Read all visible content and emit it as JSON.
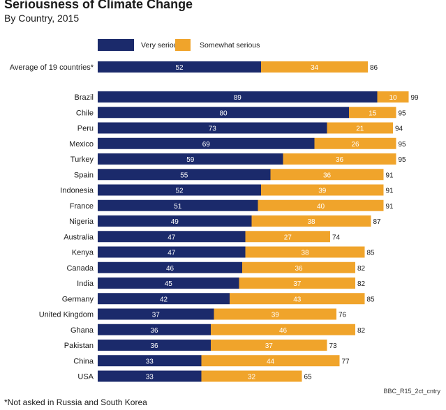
{
  "chart_data": {
    "type": "bar",
    "orientation": "horizontal",
    "stacked": true,
    "title": "Seriousness of Climate Change",
    "subtitle": "By Country, 2015",
    "categories": [
      "Average of 19 countries*",
      "Brazil",
      "Chile",
      "Peru",
      "Mexico",
      "Turkey",
      "Spain",
      "Indonesia",
      "France",
      "Nigeria",
      "Australia",
      "Kenya",
      "Canada",
      "India",
      "Germany",
      "United Kingdom",
      "Ghana",
      "Pakistan",
      "China",
      "USA"
    ],
    "series": [
      {
        "name": "Very serious",
        "color": "#1b2a6b",
        "values": [
          52,
          89,
          80,
          73,
          69,
          59,
          55,
          52,
          51,
          49,
          47,
          47,
          46,
          45,
          42,
          37,
          36,
          36,
          33,
          33
        ]
      },
      {
        "name": "Somewhat serious",
        "color": "#f0a42b",
        "values": [
          34,
          10,
          15,
          21,
          26,
          36,
          36,
          39,
          40,
          38,
          27,
          38,
          36,
          37,
          43,
          39,
          46,
          37,
          44,
          32
        ]
      }
    ],
    "totals": [
      86,
      99,
      95,
      94,
      95,
      95,
      91,
      91,
      91,
      87,
      74,
      85,
      82,
      82,
      85,
      76,
      82,
      73,
      77,
      65
    ],
    "xlim": [
      0,
      100
    ],
    "grid": false,
    "legend": "top-left"
  },
  "source_label": "BBC_R15_2ct_cntry",
  "footnote": "*Not asked in Russia and South Korea"
}
